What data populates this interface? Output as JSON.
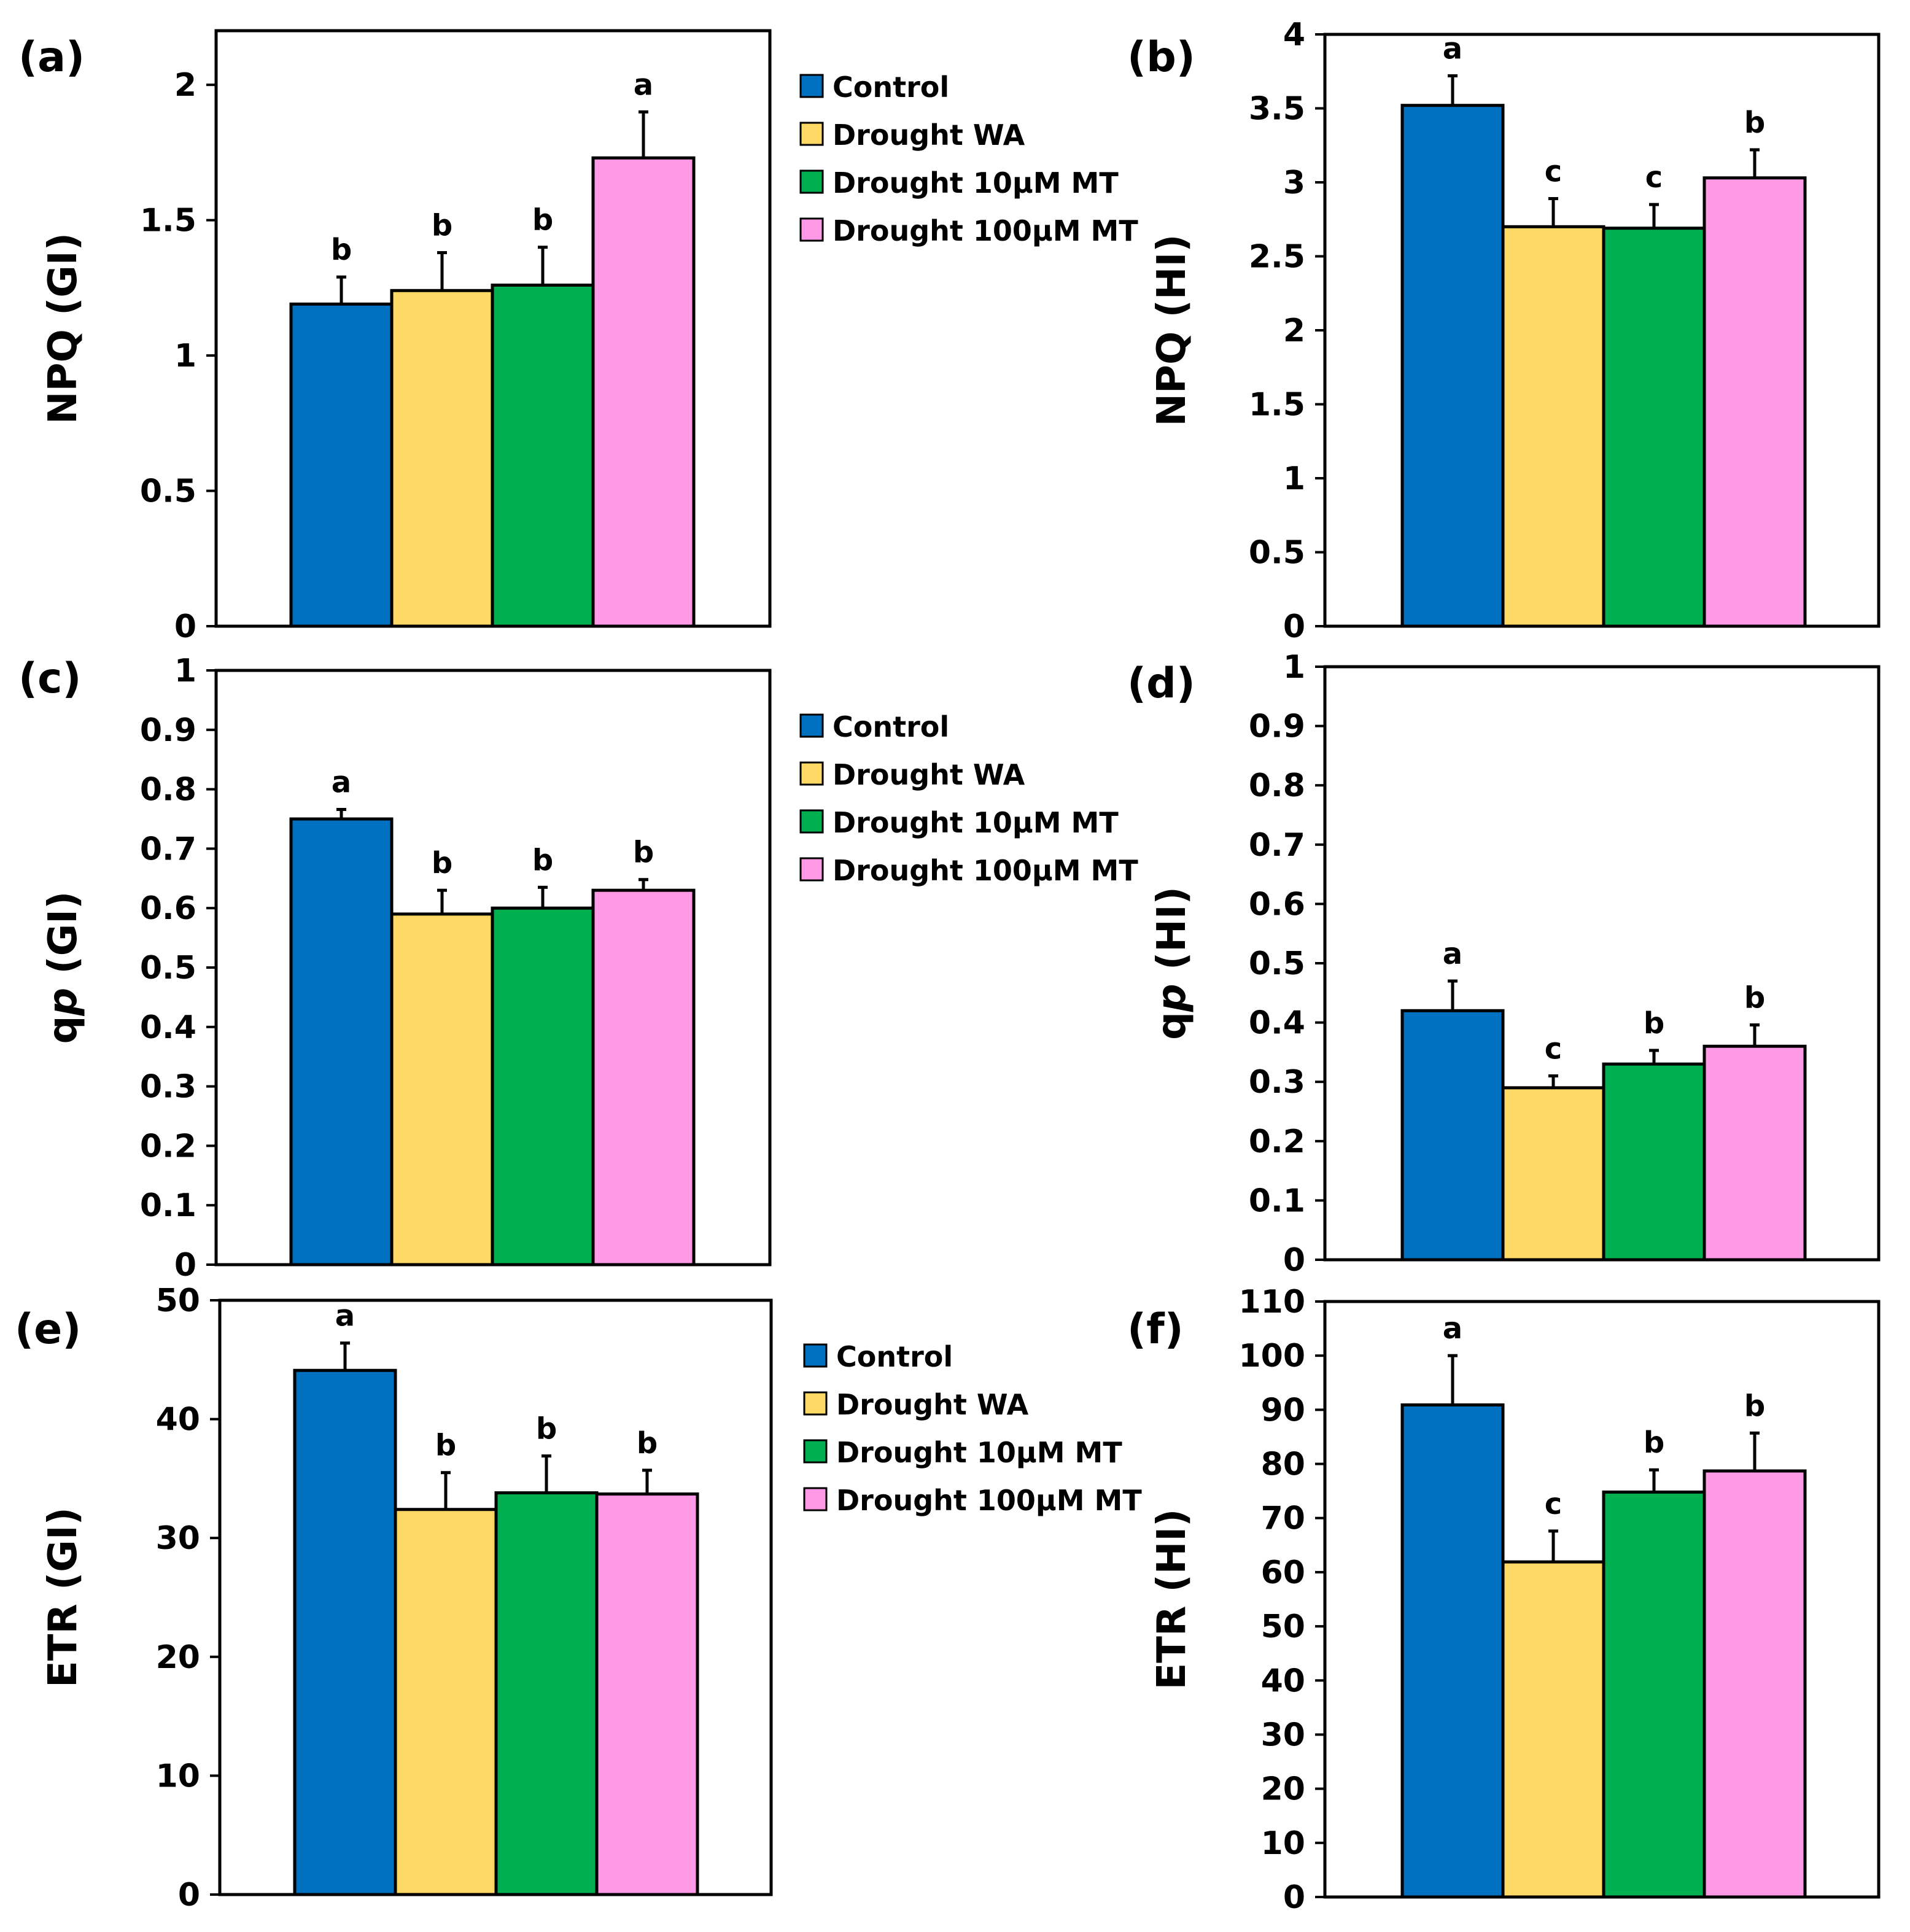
{
  "legend": [
    "Control",
    "Drought WA",
    "Drought 10µM MT",
    "Drought 100µM MT"
  ],
  "colors": [
    "#0070C0",
    "#FFD966",
    "#00B050",
    "#FF99E6"
  ],
  "chart_data": [
    {
      "type": "bar",
      "panel": "(a)",
      "ylabel_main": "NPQ",
      "ylabel_italic": "",
      "ylabel_suffix": " (GI)",
      "ylim": [
        0,
        2.2
      ],
      "ticks": [
        0,
        0.5,
        1,
        1.5,
        2
      ],
      "categories": [
        "Control",
        "Drought WA",
        "Drought 10µM MT",
        "Drought 100µM MT"
      ],
      "values": [
        1.19,
        1.24,
        1.26,
        1.73
      ],
      "errors": [
        0.1,
        0.14,
        0.14,
        0.17
      ],
      "letters": [
        "b",
        "b",
        "b",
        "a"
      ],
      "legend": true
    },
    {
      "type": "bar",
      "panel": "(b)",
      "ylabel_main": "NPQ",
      "ylabel_italic": "",
      "ylabel_suffix": "  (HI)",
      "ylim": [
        0,
        4
      ],
      "ticks": [
        0,
        0.5,
        1,
        1.5,
        2,
        2.5,
        3,
        3.5,
        4
      ],
      "categories": [
        "Control",
        "Drought WA",
        "Drought 10µM MT",
        "Drought 100µM MT"
      ],
      "values": [
        3.52,
        2.7,
        2.69,
        3.03
      ],
      "errors": [
        0.2,
        0.19,
        0.16,
        0.19
      ],
      "letters": [
        "a",
        "c",
        "c",
        "b"
      ],
      "legend": false
    },
    {
      "type": "bar",
      "panel": "(c)",
      "ylabel_main": "q",
      "ylabel_italic": "p",
      "ylabel_suffix": " (GI)",
      "ylim": [
        0,
        1
      ],
      "ticks": [
        0,
        0.1,
        0.2,
        0.3,
        0.4,
        0.5,
        0.6,
        0.7,
        0.8,
        0.9,
        1
      ],
      "categories": [
        "Control",
        "Drought WA",
        "Drought 10µM MT",
        "Drought 100µM MT"
      ],
      "values": [
        0.75,
        0.59,
        0.6,
        0.63
      ],
      "errors": [
        0.016,
        0.04,
        0.035,
        0.018
      ],
      "letters": [
        "a",
        "b",
        "b",
        "b"
      ],
      "legend": true
    },
    {
      "type": "bar",
      "panel": "(d)",
      "ylabel_main": "q",
      "ylabel_italic": "p",
      "ylabel_suffix": "  (HI)",
      "ylim": [
        0,
        1
      ],
      "ticks": [
        0,
        0.1,
        0.2,
        0.3,
        0.4,
        0.5,
        0.6,
        0.7,
        0.8,
        0.9,
        1
      ],
      "categories": [
        "Control",
        "Drought WA",
        "Drought 10µM MT",
        "Drought 100µM MT"
      ],
      "values": [
        0.42,
        0.29,
        0.33,
        0.36
      ],
      "errors": [
        0.05,
        0.02,
        0.023,
        0.036
      ],
      "letters": [
        "a",
        "c",
        "b",
        "b"
      ],
      "legend": false
    },
    {
      "type": "bar",
      "panel": "(e)",
      "ylabel_main": "ETR",
      "ylabel_italic": "",
      "ylabel_suffix": " (GI)",
      "ylim": [
        0,
        50
      ],
      "ticks": [
        0,
        10,
        20,
        30,
        40,
        50
      ],
      "categories": [
        "Control",
        "Drought WA",
        "Drought 10µM MT",
        "Drought 100µM MT"
      ],
      "values": [
        44.1,
        32.4,
        33.8,
        33.7
      ],
      "errors": [
        2.3,
        3.1,
        3.1,
        2.0
      ],
      "letters": [
        "a",
        "b",
        "b",
        "b"
      ],
      "legend": true
    },
    {
      "type": "bar",
      "panel": "(f)",
      "ylabel_main": "ETR",
      "ylabel_italic": "",
      "ylabel_suffix": "  (HI)",
      "ylim": [
        0,
        110
      ],
      "ticks": [
        0,
        10,
        20,
        30,
        40,
        50,
        60,
        70,
        80,
        90,
        100,
        110
      ],
      "categories": [
        "Control",
        "Drought WA",
        "Drought 10µM MT",
        "Drought 100µM MT"
      ],
      "values": [
        90.9,
        61.9,
        74.8,
        78.7
      ],
      "errors": [
        9.1,
        5.7,
        4.1,
        7.0
      ],
      "letters": [
        "a",
        "c",
        "b",
        "b"
      ],
      "legend": false
    }
  ]
}
